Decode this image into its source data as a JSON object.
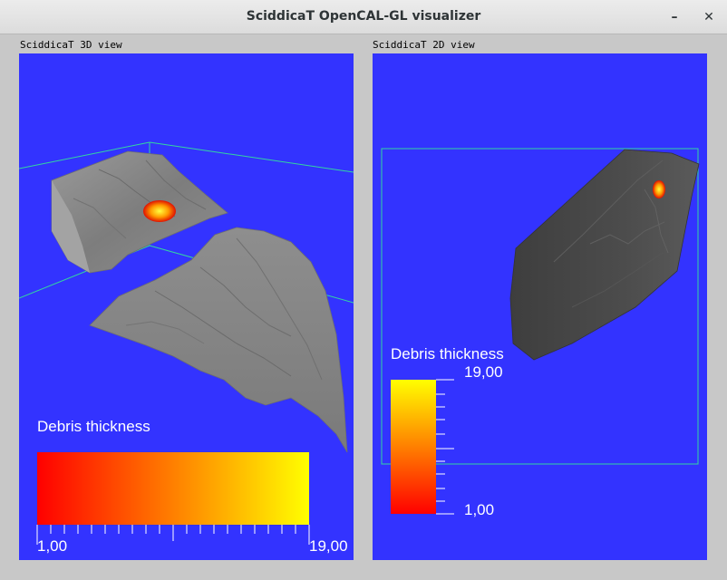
{
  "window": {
    "title": "SciddicaT OpenCAL-GL visualizer",
    "minimize_glyph": "–",
    "close_glyph": "✕"
  },
  "view3d": {
    "label": "SciddicaT 3D view",
    "legend_title": "Debris thickness",
    "legend_min": "1,00",
    "legend_max": "19,00"
  },
  "view2d": {
    "label": "SciddicaT 2D view",
    "legend_title": "Debris thickness",
    "legend_min": "1,00",
    "legend_max": "19,00"
  },
  "colors": {
    "background_blue": "#3333ff",
    "bbox_cyan": "#33d6a0",
    "terrain_gray": "#8a8a8a",
    "terrain_dark": "#4a4a4a",
    "gradient_low": "#ff0000",
    "gradient_high": "#ffff00"
  }
}
